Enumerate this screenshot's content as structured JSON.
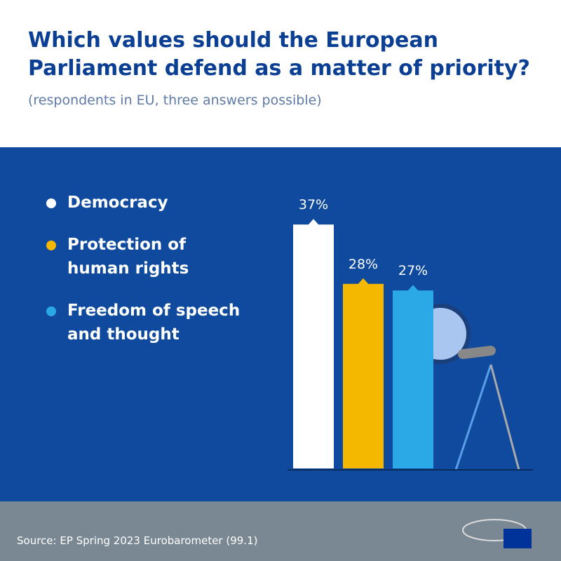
{
  "chart_data": {
    "type": "bar",
    "title": "Which values should the European Parliament defend as a matter of priority?",
    "subtitle": "(respondents in EU, three answers possible)",
    "categories": [
      "Democracy",
      "Protection of human rights",
      "Freedom of speech and thought"
    ],
    "values": [
      37,
      28,
      27
    ],
    "value_labels": [
      "37%",
      "28%",
      "27%"
    ],
    "colors": [
      "#ffffff",
      "#f5b800",
      "#2aa9e6"
    ],
    "source": "Source:  EP Spring 2023 Eurobarometer (99.1)"
  }
}
